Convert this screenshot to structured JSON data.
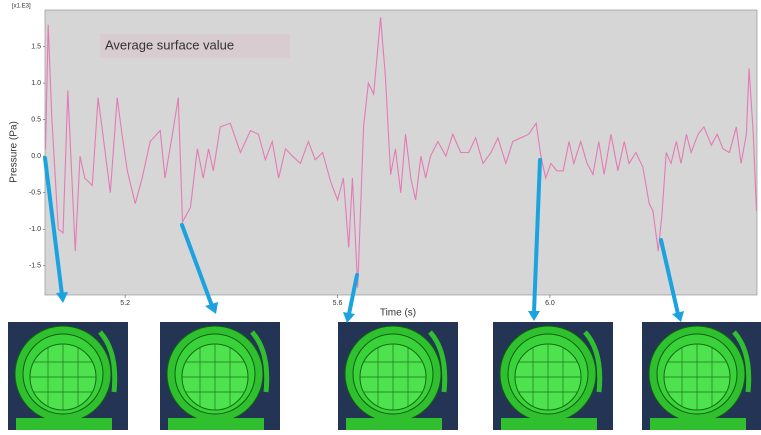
{
  "chart_data": {
    "type": "line",
    "annotation": "Average surface value",
    "scale_label": "[x1.E3]",
    "ylabel": "Pressure (Pa)",
    "xlabel": "Time (s)",
    "color": "#e67ab4",
    "grid": false,
    "xlim": [
      5.049,
      6.39
    ],
    "ylim": [
      -1.9,
      2.0
    ],
    "xticks": [
      5.2,
      5.6,
      {
        "value": 6,
        "label": "6.0"
      }
    ],
    "yticks": [
      1.5,
      {
        "value": 1,
        "label": "1.0"
      },
      0.5,
      {
        "value": 0,
        "label": "0.0"
      },
      -0.5,
      {
        "value": -1,
        "label": "-1.0"
      },
      -1.5
    ],
    "x": [
      5.05,
      5.055,
      5.062,
      5.074,
      5.083,
      5.092,
      5.106,
      5.115,
      5.124,
      5.138,
      5.149,
      5.158,
      5.172,
      5.185,
      5.194,
      5.204,
      5.219,
      5.232,
      5.247,
      5.266,
      5.275,
      5.289,
      5.3,
      5.308,
      5.323,
      5.336,
      5.347,
      5.357,
      5.366,
      5.379,
      5.398,
      5.417,
      5.436,
      5.451,
      5.464,
      5.477,
      5.489,
      5.502,
      5.515,
      5.53,
      5.545,
      5.558,
      5.572,
      5.587,
      5.6,
      5.611,
      5.621,
      5.628,
      5.638,
      5.643,
      5.649,
      5.658,
      5.668,
      5.681,
      5.69,
      5.7,
      5.709,
      5.719,
      5.728,
      5.738,
      5.747,
      5.757,
      5.766,
      5.775,
      5.789,
      5.804,
      5.817,
      5.832,
      5.847,
      5.86,
      5.874,
      5.889,
      5.902,
      5.917,
      5.93,
      5.945,
      5.96,
      5.974,
      5.983,
      5.992,
      6.002,
      6.013,
      6.025,
      6.036,
      6.045,
      6.058,
      6.07,
      6.081,
      6.092,
      6.102,
      6.115,
      6.128,
      6.14,
      6.149,
      6.162,
      6.175,
      6.187,
      6.194,
      6.204,
      6.211,
      6.219,
      6.228,
      6.238,
      6.247,
      6.257,
      6.266,
      6.279,
      6.29,
      6.304,
      6.315,
      6.326,
      6.338,
      6.351,
      6.36,
      6.37,
      6.375,
      6.383,
      6.389
    ],
    "values": [
      0.1,
      1.8,
      0.5,
      -1.0,
      -1.05,
      0.9,
      -1.3,
      0,
      -0.3,
      -0.4,
      0.8,
      0.3,
      -0.5,
      0.8,
      0.3,
      -0.2,
      -0.65,
      -0.3,
      0.2,
      0.35,
      -0.3,
      0.3,
      0.8,
      -0.9,
      -0.7,
      0.1,
      -0.3,
      0.1,
      -0.2,
      0.4,
      0.45,
      0.05,
      0.35,
      0.3,
      -0.05,
      0.2,
      -0.3,
      0.1,
      0.0,
      -0.1,
      0.2,
      -0.05,
      0.05,
      -0.35,
      -0.6,
      -0.3,
      -1.25,
      -0.3,
      -1.8,
      -0.8,
      0.4,
      1.0,
      0.85,
      1.9,
      1.1,
      -0.25,
      0.1,
      -0.5,
      0.3,
      -0.3,
      -0.6,
      0.0,
      -0.3,
      0.0,
      0.2,
      0.0,
      0.3,
      0.05,
      0.05,
      0.25,
      -0.1,
      0.05,
      0.25,
      -0.1,
      0.2,
      0.25,
      0.3,
      0.45,
      0.0,
      -0.3,
      -0.1,
      -0.2,
      -0.2,
      0.2,
      -0.1,
      0.2,
      -0.1,
      -0.25,
      0.2,
      -0.25,
      0.3,
      -0.2,
      0.2,
      -0.1,
      0.05,
      -0.15,
      -0.65,
      -0.75,
      -1.3,
      -0.8,
      0.05,
      -0.1,
      0.2,
      -0.1,
      0.3,
      0.05,
      0.3,
      0.4,
      0.15,
      0.3,
      0.1,
      0.05,
      0.4,
      -0.1,
      0.3,
      1.2,
      0.3,
      -0.75
    ]
  }
}
